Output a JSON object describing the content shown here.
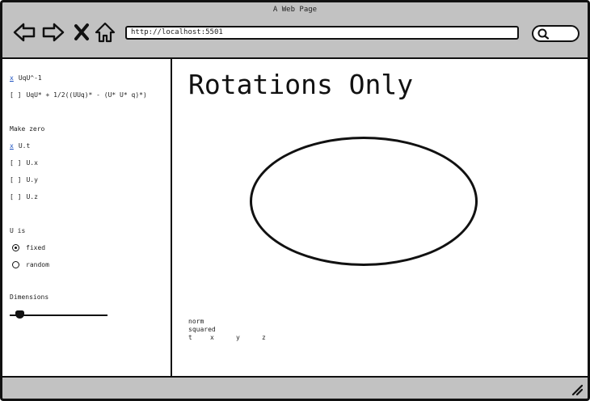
{
  "window": {
    "title": "A Web Page"
  },
  "toolbar": {
    "url": "http://localhost:5501",
    "back_icon": "back-arrow-icon",
    "forward_icon": "forward-arrow-icon",
    "stop_icon": "close-x-icon",
    "home_icon": "home-icon",
    "search_icon": "search-icon"
  },
  "sidebar": {
    "ops": [
      {
        "mark": "x",
        "label": "UqU^-1",
        "checked": true
      },
      {
        "mark": "[ ]",
        "label": "UqU* + 1/2((UUq)* - (U* U* q)*)",
        "checked": false
      }
    ],
    "zero_heading": "Make zero",
    "zero": [
      {
        "mark": "x",
        "label": "U.t",
        "checked": true
      },
      {
        "mark": "[ ]",
        "label": "U.x",
        "checked": false
      },
      {
        "mark": "[ ]",
        "label": "U.y",
        "checked": false
      },
      {
        "mark": "[ ]",
        "label": "U.z",
        "checked": false
      }
    ],
    "u_heading": "U is",
    "u_options": [
      {
        "label": "fixed",
        "selected": true
      },
      {
        "label": "random",
        "selected": false
      }
    ],
    "dimensions_label": "Dimensions",
    "dimensions_value": 0.1
  },
  "main": {
    "title": "Rotations Only",
    "legend_line1": "norm",
    "legend_line2": "squared",
    "axes": [
      "t",
      "x",
      "y",
      "z"
    ]
  },
  "colors": {
    "chrome": "#c2c2c2",
    "link": "#1a4fbf"
  }
}
